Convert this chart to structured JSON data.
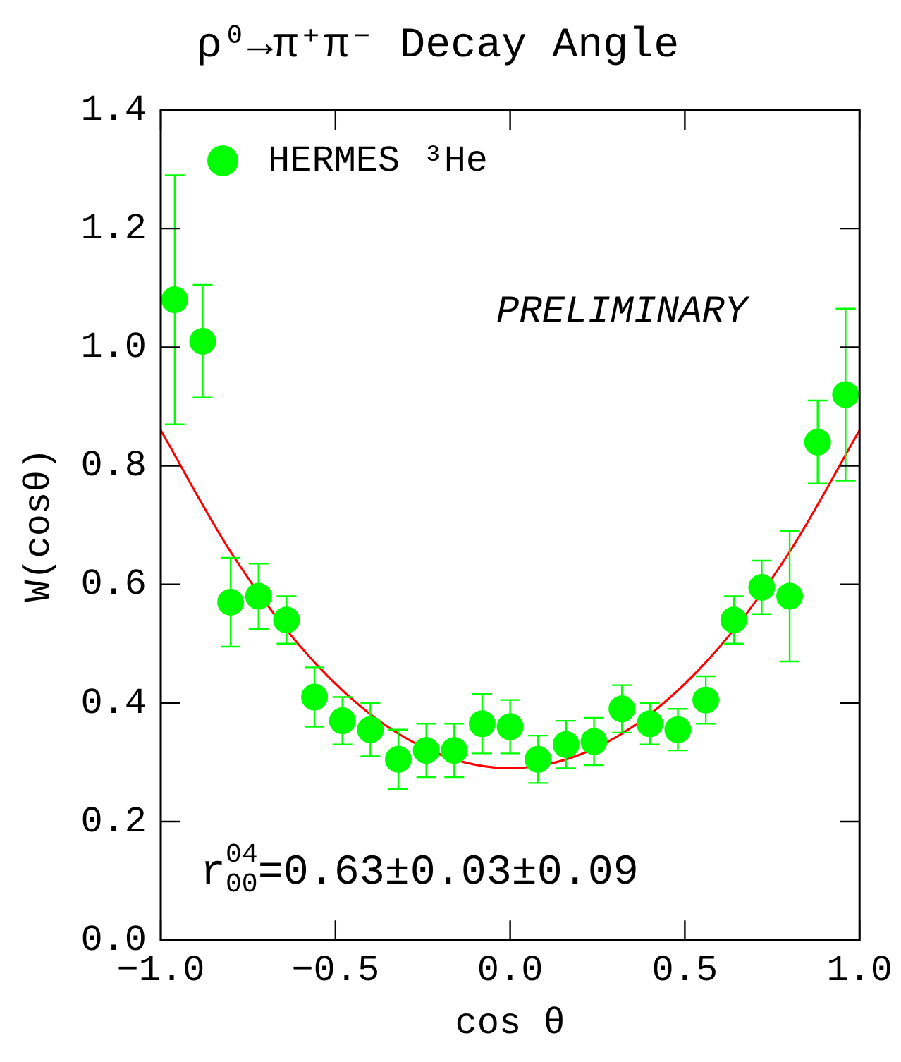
{
  "chart_data": {
    "type": "scatter",
    "title": "ρ⁰→π⁺π⁻ Decay Angle",
    "xlabel": "cos θ",
    "ylabel": "W(cosθ)",
    "xlim": [
      -1,
      1
    ],
    "xticks": [
      {
        "value": -1,
        "label": "−1.0"
      },
      {
        "value": -0.5,
        "label": "−0.5"
      },
      {
        "value": 0,
        "label": "0.0"
      },
      {
        "value": 0.5,
        "label": "0.5"
      },
      {
        "value": 1,
        "label": "1.0"
      }
    ],
    "ylim": [
      0,
      1.4
    ],
    "yticks": [
      {
        "value": 0,
        "label": "0.0"
      },
      {
        "value": 0.2,
        "label": "0.2"
      },
      {
        "value": 0.4,
        "label": "0.4"
      },
      {
        "value": 0.6,
        "label": "0.6"
      },
      {
        "value": 0.8,
        "label": "0.8"
      },
      {
        "value": 1,
        "label": "1.0"
      },
      {
        "value": 1.2,
        "label": "1.2"
      },
      {
        "value": 1.4,
        "label": "1.4"
      }
    ],
    "grid": false,
    "legend": "top left",
    "marker": "circle",
    "annotations": [
      "PRELIMINARY",
      "r$^{04}$$_{00}$=0.63±0.03±0.09"
    ],
    "series": [
      {
        "name": "HERMES ³He",
        "color": "#00ff00",
        "x": [
          -0.96,
          -0.88,
          -0.8,
          -0.72,
          -0.64,
          -0.56,
          -0.48,
          -0.4,
          -0.32,
          -0.24,
          -0.16,
          -0.08,
          0,
          0.08,
          0.16,
          0.24,
          0.32,
          0.4,
          0.48,
          0.56,
          0.64,
          0.72,
          0.8,
          0.88,
          0.96
        ],
        "values": [
          1.08,
          1.01,
          0.57,
          0.58,
          0.54,
          0.41,
          0.37,
          0.355,
          0.305,
          0.32,
          0.32,
          0.365,
          0.36,
          0.305,
          0.33,
          0.335,
          0.39,
          0.365,
          0.355,
          0.405,
          0.54,
          0.595,
          0.58,
          0.84,
          0.92
        ],
        "errors": [
          0.21,
          0.095,
          0.075,
          0.055,
          0.04,
          0.05,
          0.04,
          0.045,
          0.05,
          0.045,
          0.045,
          0.05,
          0.045,
          0.04,
          0.04,
          0.04,
          0.04,
          0.035,
          0.035,
          0.04,
          0.04,
          0.045,
          0.11,
          0.07,
          0.145
        ]
      },
      {
        "type": "line",
        "color": "#ff0000",
        "marker": "none",
        "x": [
          -1,
          -0.8,
          -0.6,
          -0.4,
          -0.2,
          0,
          0.2,
          0.4,
          0.6,
          0.8,
          1
        ],
        "values": [
          0.86,
          0.655,
          0.495,
          0.381,
          0.313,
          0.29,
          0.313,
          0.381,
          0.495,
          0.655,
          0.86
        ]
      }
    ]
  }
}
